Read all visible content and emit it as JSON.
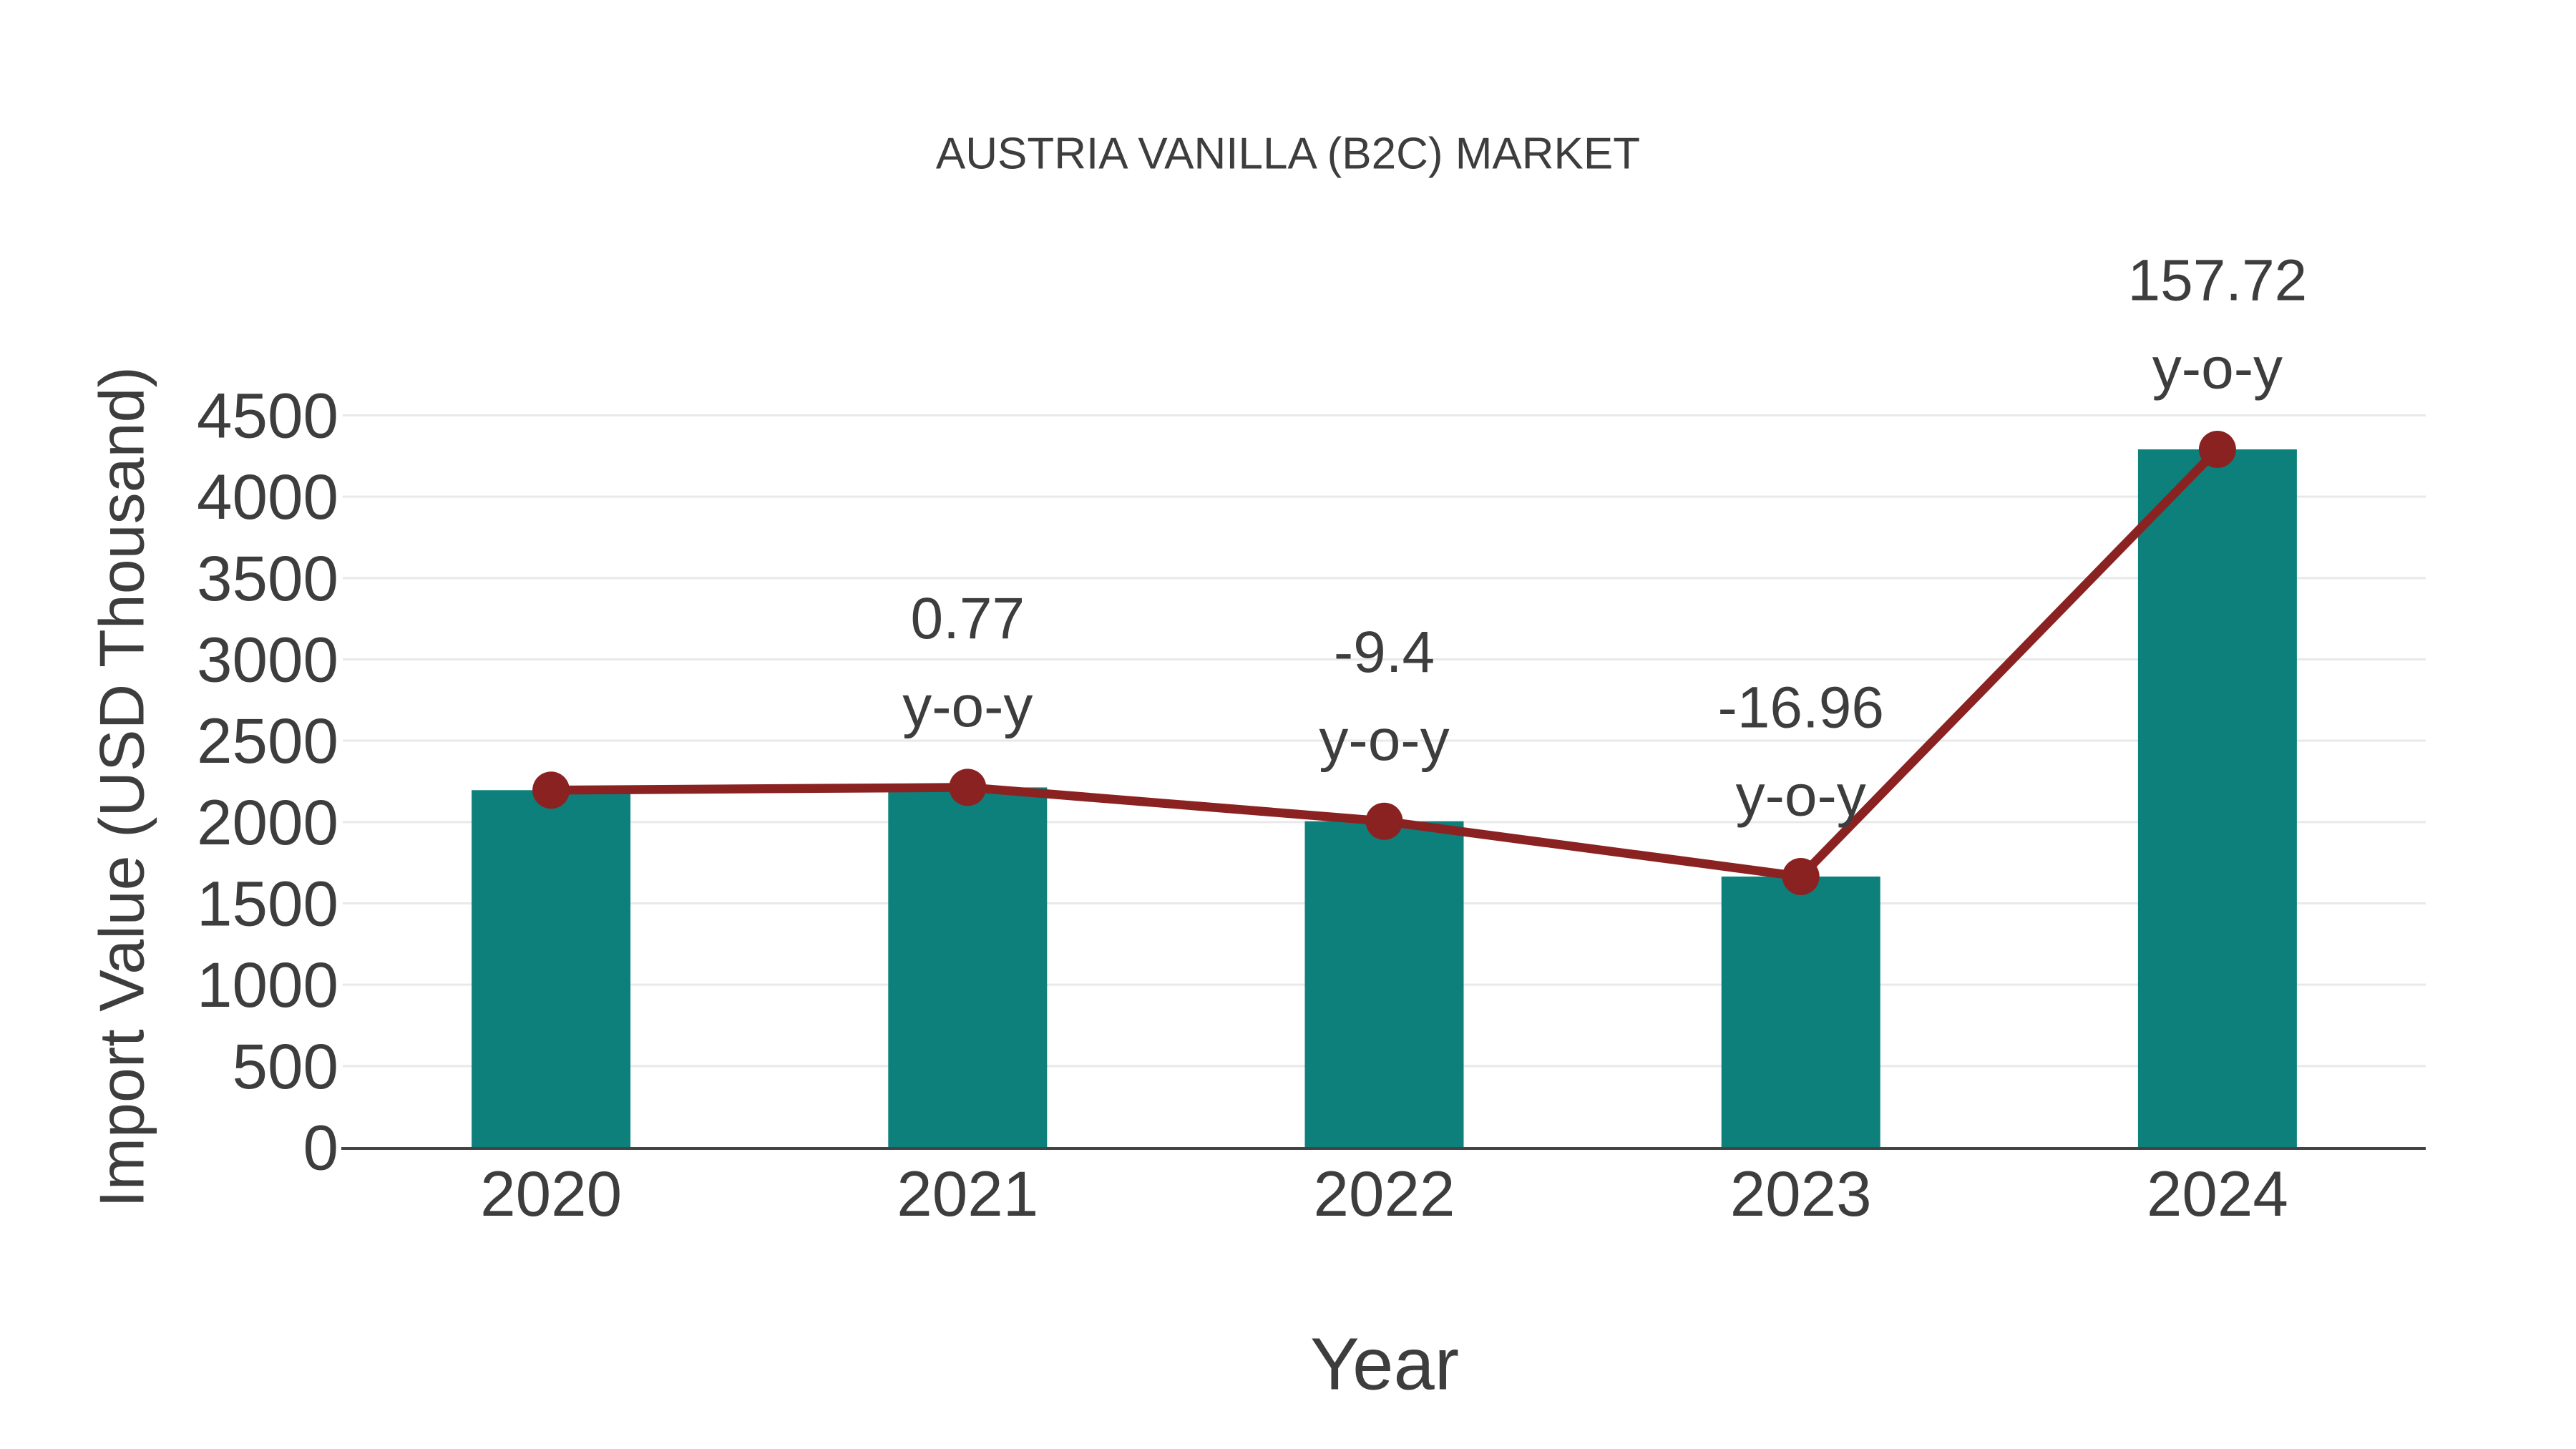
{
  "page": {
    "background": "#ffffff"
  },
  "chart_data": {
    "type": "bar",
    "subtype": "bar-with-line-overlay",
    "title": "AUSTRIA VANILLA (B2C) MARKET",
    "xlabel": "Year",
    "ylabel": "Import Value (USD Thousand)",
    "categories": [
      "2020",
      "2021",
      "2022",
      "2023",
      "2024"
    ],
    "series": [
      {
        "name": "Import Value (USD Thousand)",
        "type": "bar",
        "values": [
          2196,
          2213,
          2005,
          1665,
          4291
        ],
        "color": "#0d807c"
      },
      {
        "name": "y-o-y trend",
        "type": "line",
        "values": [
          2196,
          2213,
          2005,
          1665,
          4291
        ],
        "color": "#8b2222",
        "marker": "circle"
      }
    ],
    "annotations": [
      {
        "category": "2021",
        "line1": "0.77",
        "line2": "y-o-y"
      },
      {
        "category": "2022",
        "line1": "-9.4",
        "line2": "y-o-y"
      },
      {
        "category": "2023",
        "line1": "-16.96",
        "line2": "y-o-y"
      },
      {
        "category": "2024",
        "line1": "157.72",
        "line2": "y-o-y"
      }
    ],
    "yticks": [
      0,
      500,
      1000,
      1500,
      2000,
      2500,
      3000,
      3500,
      4000,
      4500
    ],
    "ylim": [
      0,
      4500
    ],
    "grid": true,
    "legend": "none",
    "colors": {
      "bar": "#0d807c",
      "line": "#8b2222",
      "marker": "#8b2222",
      "grid": "#e9e9e9",
      "axis_line": "#444444",
      "text": "#3d3d3d"
    }
  }
}
